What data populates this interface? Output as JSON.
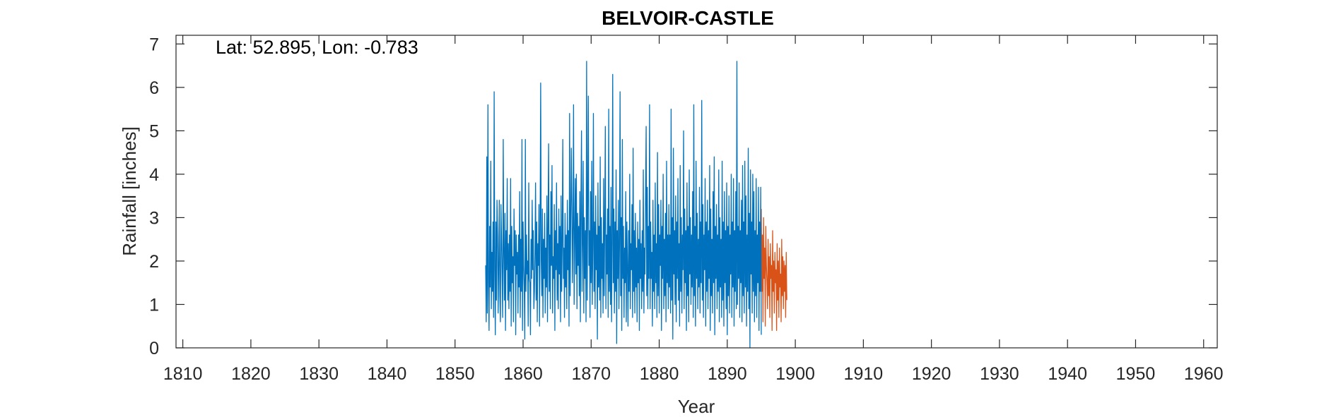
{
  "chart_data": {
    "type": "line",
    "title": "BELVOIR-CASTLE",
    "xlabel": "Year",
    "ylabel": "Rainfall [inches]",
    "annotation": "Lat: 52.895, Lon: -0.783",
    "xlim": [
      1809,
      1962
    ],
    "ylim": [
      0,
      7.2
    ],
    "xticks": [
      1810,
      1820,
      1830,
      1840,
      1850,
      1860,
      1870,
      1880,
      1890,
      1900,
      1910,
      1920,
      1930,
      1940,
      1950,
      1960
    ],
    "yticks": [
      0,
      1,
      2,
      3,
      4,
      5,
      6,
      7
    ],
    "grid": false,
    "colors": {
      "main": "#0072BD",
      "secondary": "#D95319",
      "axis": "#262626"
    },
    "series": [
      {
        "x_start": 1854.5,
        "x_step": 0.0833333,
        "values": [
          1.9,
          0.6,
          4.4,
          0.8,
          5.6,
          1.5,
          0.4,
          2.8,
          1.4,
          4.3,
          0.9,
          2.2,
          1.3,
          2.9,
          0.7,
          5.9,
          1.8,
          0.3,
          2.9,
          1.1,
          3.4,
          2.6,
          0.8,
          1.9,
          3.4,
          1.2,
          0.6,
          3.3,
          2.5,
          1.6,
          0.7,
          4.8,
          2.2,
          1.1,
          3.1,
          0.4,
          2.7,
          1.8,
          3.9,
          1.1,
          2.4,
          0.9,
          2.6,
          1.3,
          3.9,
          0.5,
          2.8,
          1.5,
          2.1,
          0.6,
          3.2,
          1.9,
          2.7,
          0.3,
          2.6,
          1.7,
          2.2,
          0.8,
          2.6,
          1.4,
          3.6,
          0.7,
          2.5,
          1.3,
          4.8,
          0.4,
          2.9,
          1.9,
          1.4,
          0.2,
          4.8,
          1.3,
          2.6,
          1.7,
          2.0,
          0.5,
          3.8,
          1.6,
          1.5,
          0.3,
          2.5,
          1.6,
          3.4,
          1.8,
          2.7,
          0.9,
          1.3,
          2.2,
          3.8,
          1.1,
          2.9,
          0.6,
          2.4,
          1.9,
          3.3,
          0.5,
          2.7,
          6.1,
          2.0,
          1.2,
          3.2,
          0.7,
          2.5,
          1.6,
          3.1,
          0.8,
          2.3,
          1.4,
          3.5,
          0.6,
          2.9,
          4.7,
          1.3,
          2.6,
          0.9,
          3.6,
          1.9,
          4.2,
          0.8,
          2.1,
          1.6,
          3.3,
          0.4,
          2.7,
          1.8,
          3.8,
          1.1,
          2.4,
          0.9,
          3.2,
          1.7,
          2.8,
          0.6,
          3.5,
          1.3,
          2.4,
          4.8,
          1.6,
          2.3,
          0.7,
          3.1,
          1.4,
          2.6,
          0.9,
          3.4,
          1.8,
          2.7,
          0.5,
          5.4,
          1.2,
          2.9,
          4.6,
          3.3,
          1.5,
          2.8,
          5.6,
          1.0,
          2.4,
          3.9,
          1.7,
          4.0,
          0.9,
          3.1,
          1.9,
          2.8,
          1.2,
          3.6,
          0.6,
          3.4,
          5.0,
          1.3,
          2.5,
          4.3,
          0.8,
          3.0,
          1.6,
          2.7,
          0.6,
          6.6,
          1.1,
          3.4,
          5.8,
          1.9,
          2.7,
          0.7,
          3.6,
          1.5,
          4.3,
          1.0,
          2.4,
          5.4,
          1.3,
          2.9,
          0.9,
          3.5,
          1.8,
          2.6,
          0.2,
          3.8,
          1.4,
          2.8,
          1.1,
          4.4,
          0.7,
          3.0,
          1.6,
          2.4,
          0.8,
          3.9,
          1.2,
          2.9,
          5.1,
          0.9,
          2.6,
          1.7,
          3.2,
          0.7,
          5.5,
          1.3,
          2.8,
          1.0,
          3.7,
          0.6,
          2.4,
          6.3,
          1.5,
          3.2,
          0.8,
          2.9,
          1.3,
          4.1,
          0.1,
          2.7,
          1.6,
          3.4,
          0.9,
          2.4,
          5.9,
          1.2,
          3.0,
          0.4,
          4.8,
          1.6,
          2.8,
          0.7,
          2.3,
          1.5,
          3.6,
          0.6,
          2.9,
          1.9,
          0.5,
          2.7,
          1.3,
          4.0,
          0.9,
          2.4,
          1.8,
          3.3,
          0.7,
          4.6,
          1.3,
          2.7,
          0.8,
          3.1,
          1.4,
          2.3,
          0.6,
          2.9,
          1.5,
          2.5,
          0.4,
          3.4,
          1.6,
          2.4,
          0.9,
          2.7,
          1.3,
          4.1,
          0.8,
          2.3,
          1.7,
          3.6,
          5.1,
          1.2,
          3.7,
          0.9,
          2.8,
          1.6,
          5.6,
          0.9,
          2.9,
          1.6,
          2.2,
          0.5,
          3.4,
          1.3,
          2.6,
          0.9,
          3.8,
          1.5,
          2.4,
          0.7,
          4.5,
          1.2,
          3.3,
          0.8,
          2.6,
          1.9,
          3.4,
          0.4,
          2.8,
          1.6,
          4.0,
          0.9,
          2.5,
          1.2,
          3.1,
          0.6,
          4.3,
          1.5,
          2.6,
          0.9,
          3.3,
          1.4,
          2.6,
          0.8,
          5.5,
          1.1,
          3.0,
          0.2,
          4.6,
          1.7,
          2.7,
          1.0,
          3.5,
          0.6,
          2.9,
          1.6,
          3.9,
          1.1,
          2.4,
          0.5,
          4.2,
          1.3,
          3.0,
          0.8,
          2.6,
          1.8,
          5.0,
          0.9,
          3.2,
          1.5,
          2.7,
          0.4,
          3.8,
          1.2,
          2.8,
          0.6,
          4.1,
          1.7,
          3.0,
          1.0,
          2.6,
          1.4,
          3.6,
          0.7,
          5.6,
          1.2,
          2.8,
          0.5,
          4.3,
          1.6,
          3.1,
          0.9,
          2.5,
          1.4,
          3.7,
          0.8,
          2.9,
          1.5,
          5.7,
          1.1,
          3.3,
          0.7,
          2.6,
          1.8,
          3.9,
          0.5,
          2.9,
          1.3,
          3.4,
          0.9,
          2.7,
          1.6,
          4.2,
          0.4,
          3.2,
          1.2,
          2.5,
          0.8,
          3.6,
          1.5,
          4.4,
          0.3,
          2.8,
          1.6,
          3.3,
          0.9,
          2.6,
          1.3,
          4.1,
          0.6,
          3.0,
          1.4,
          2.5,
          0.7,
          4.3,
          1.1,
          2.9,
          0.5,
          3.6,
          1.5,
          2.7,
          0.9,
          3.8,
          0.3,
          2.8,
          1.2,
          3.5,
          0.8,
          2.6,
          1.7,
          4.0,
          0.7,
          2.9,
          1.4,
          3.9,
          0.5,
          2.7,
          1.3,
          3.6,
          0.9,
          6.6,
          1.0,
          2.8,
          1.6,
          3.8,
          0.7,
          2.7,
          1.5,
          3.4,
          0.6,
          4.2,
          1.2,
          2.9,
          0.8,
          4.3,
          1.4,
          3.5,
          0.5,
          2.6,
          1.3,
          4.6,
          0.9,
          3.1,
          0.0,
          4.1,
          1.7,
          2.9,
          0.8,
          4.0,
          1.3,
          3.6,
          0.6,
          2.7,
          1.2,
          3.9,
          0.7,
          2.6,
          1.5,
          3.7,
          0.4,
          2.9,
          1.3,
          3.7,
          0.3
        ]
      },
      {
        "x_start": 1895.0,
        "x_step": 0.0833333,
        "values": [
          3.2,
          1.3,
          2.6,
          0.6,
          3.0,
          1.6,
          2.3,
          0.5,
          2.8,
          1.9,
          1.5,
          0.9,
          2.5,
          1.2,
          2.1,
          0.7,
          2.4,
          1.6,
          1.9,
          0.4,
          2.7,
          1.3,
          2.0,
          0.8,
          2.2,
          1.5,
          1.8,
          0.4,
          2.4,
          1.1,
          2.0,
          0.7,
          2.3,
          1.4,
          1.7,
          0.6,
          2.5,
          1.2,
          2.1,
          0.9,
          2.0,
          1.3,
          1.9,
          0.7,
          2.2,
          1.1
        ]
      }
    ]
  }
}
